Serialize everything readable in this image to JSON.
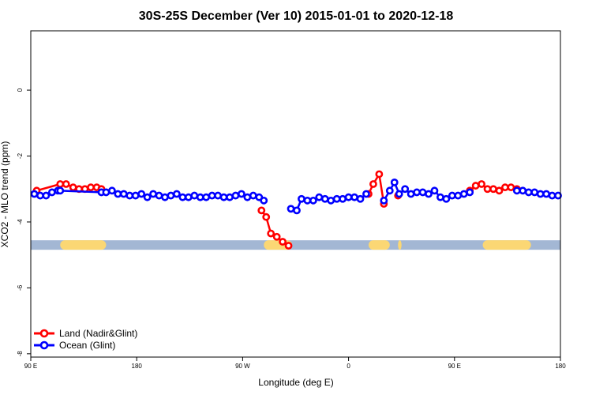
{
  "chart_data": {
    "type": "line",
    "title": "30S-25S December (Ver 10)   2015-01-01 to 2020-12-18",
    "xlabel": "Longitude (deg E)",
    "ylabel": "XCO2 - MLO trend (ppm)",
    "xlim": [
      90,
      540
    ],
    "ylim": [
      -8.1,
      1.8
    ],
    "x_ticks": [
      {
        "value": 90,
        "label": "90 E"
      },
      {
        "value": 180,
        "label": "180"
      },
      {
        "value": 270,
        "label": "90 W"
      },
      {
        "value": 360,
        "label": "0"
      },
      {
        "value": 450,
        "label": "90 E"
      },
      {
        "value": 540,
        "label": "180"
      }
    ],
    "y_ticks": [
      {
        "value": 0,
        "label": "0"
      },
      {
        "value": -2,
        "label": "-2"
      },
      {
        "value": -4,
        "label": "-4"
      },
      {
        "value": -6,
        "label": "-6"
      },
      {
        "value": -8,
        "label": "-8"
      }
    ],
    "legend_position": "bottom-left",
    "band": {
      "y": -4.7,
      "base_color": "#a3b7d4",
      "land_color": "#fbd774",
      "land_spans": [
        [
          115,
          154
        ],
        [
          288,
          312
        ],
        [
          377,
          395
        ],
        [
          402,
          405
        ],
        [
          474,
          515
        ]
      ]
    },
    "series": [
      {
        "name": "Land (Nadir&Glint)",
        "color": "#ff0000",
        "segments": [
          [
            [
              95,
              -3.05
            ],
            [
              115,
              -2.85
            ],
            [
              120,
              -2.85
            ],
            [
              126,
              -2.95
            ],
            [
              131,
              -3.0
            ],
            [
              136,
              -3.0
            ],
            [
              141,
              -2.95
            ],
            [
              146,
              -2.95
            ],
            [
              150,
              -3.0
            ]
          ],
          [
            [
              286,
              -3.65
            ],
            [
              290,
              -3.85
            ],
            [
              294,
              -4.35
            ],
            [
              299,
              -4.45
            ],
            [
              304,
              -4.6
            ],
            [
              309,
              -4.72
            ]
          ],
          [
            [
              377,
              -3.15
            ],
            [
              381,
              -2.85
            ],
            [
              386,
              -2.55
            ],
            [
              390,
              -3.45
            ]
          ],
          [
            [
              402,
              -3.2
            ]
          ],
          [
            [
              463,
              -3.05
            ],
            [
              468,
              -2.9
            ],
            [
              473,
              -2.85
            ],
            [
              478,
              -3.0
            ],
            [
              483,
              -3.0
            ],
            [
              488,
              -3.05
            ],
            [
              493,
              -2.95
            ],
            [
              498,
              -2.95
            ],
            [
              503,
              -3.0
            ]
          ]
        ]
      },
      {
        "name": "Ocean (Glint)",
        "color": "#0000ff",
        "segments": [
          [
            [
              93,
              -3.15
            ],
            [
              98,
              -3.2
            ],
            [
              103,
              -3.2
            ],
            [
              108,
              -3.1
            ],
            [
              113,
              -3.05
            ],
            [
              115,
              -3.05
            ],
            [
              150,
              -3.1
            ],
            [
              154,
              -3.1
            ],
            [
              159,
              -3.05
            ],
            [
              164,
              -3.15
            ],
            [
              169,
              -3.15
            ],
            [
              174,
              -3.2
            ],
            [
              179,
              -3.2
            ],
            [
              184,
              -3.15
            ],
            [
              189,
              -3.25
            ],
            [
              194,
              -3.15
            ],
            [
              199,
              -3.2
            ],
            [
              204,
              -3.25
            ],
            [
              209,
              -3.2
            ],
            [
              214,
              -3.15
            ],
            [
              219,
              -3.25
            ],
            [
              224,
              -3.25
            ],
            [
              229,
              -3.2
            ],
            [
              234,
              -3.25
            ],
            [
              239,
              -3.25
            ],
            [
              244,
              -3.2
            ],
            [
              249,
              -3.2
            ],
            [
              254,
              -3.25
            ],
            [
              259,
              -3.25
            ],
            [
              264,
              -3.2
            ],
            [
              269,
              -3.15
            ],
            [
              274,
              -3.25
            ],
            [
              279,
              -3.2
            ],
            [
              284,
              -3.25
            ],
            [
              288,
              -3.35
            ]
          ],
          [
            [
              311,
              -3.6
            ],
            [
              316,
              -3.65
            ],
            [
              320,
              -3.3
            ],
            [
              325,
              -3.35
            ],
            [
              330,
              -3.35
            ],
            [
              335,
              -3.25
            ],
            [
              340,
              -3.3
            ],
            [
              345,
              -3.35
            ],
            [
              350,
              -3.3
            ],
            [
              355,
              -3.3
            ],
            [
              360,
              -3.25
            ],
            [
              365,
              -3.25
            ],
            [
              370,
              -3.3
            ],
            [
              375,
              -3.15
            ]
          ],
          [
            [
              390,
              -3.35
            ],
            [
              395,
              -3.05
            ],
            [
              399,
              -2.8
            ],
            [
              403,
              -3.15
            ],
            [
              408,
              -3.0
            ],
            [
              413,
              -3.15
            ],
            [
              418,
              -3.1
            ],
            [
              423,
              -3.1
            ],
            [
              428,
              -3.15
            ],
            [
              433,
              -3.05
            ],
            [
              438,
              -3.25
            ],
            [
              443,
              -3.3
            ],
            [
              448,
              -3.2
            ],
            [
              453,
              -3.2
            ],
            [
              458,
              -3.15
            ],
            [
              463,
              -3.1
            ]
          ],
          [
            [
              503,
              -3.05
            ],
            [
              508,
              -3.05
            ],
            [
              513,
              -3.1
            ],
            [
              518,
              -3.1
            ],
            [
              523,
              -3.15
            ],
            [
              528,
              -3.15
            ],
            [
              533,
              -3.2
            ],
            [
              538,
              -3.2
            ]
          ]
        ]
      }
    ]
  }
}
